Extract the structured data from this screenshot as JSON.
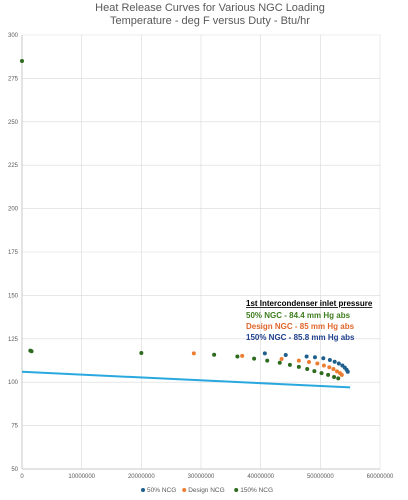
{
  "chart_data": {
    "type": "scatter",
    "title": "Heat Release Curves for Various NGC Loading",
    "subtitle": "Temperature - deg F versus Duty - Btu/hr",
    "xlabel": "",
    "ylabel": "",
    "xlim": [
      0,
      60000000
    ],
    "ylim": [
      50,
      300
    ],
    "grid": true,
    "legend_position": "bottom",
    "x_tick_labels": [
      "0",
      "10000000",
      "20000000",
      "30000000",
      "40000000",
      "50000000",
      "60000000"
    ],
    "x_tick_values": [
      0,
      10000000,
      20000000,
      30000000,
      40000000,
      50000000,
      60000000
    ],
    "y_tick_labels": [
      "50",
      "75",
      "100",
      "125",
      "150",
      "175",
      "200",
      "225",
      "250",
      "275",
      "300"
    ],
    "y_tick_values": [
      50,
      75,
      100,
      125,
      150,
      175,
      200,
      225,
      250,
      275,
      300
    ],
    "series": [
      {
        "name": "50% NCG",
        "color": "#1f5f8b",
        "points": [
          [
            40700000,
            116.6
          ],
          [
            44200000,
            115.7
          ],
          [
            47700000,
            114.8
          ],
          [
            49100000,
            114.4
          ],
          [
            50500000,
            113.8
          ],
          [
            51600000,
            112.8
          ],
          [
            52400000,
            111.8
          ],
          [
            53100000,
            110.8
          ],
          [
            53700000,
            109.6
          ],
          [
            54100000,
            108.4
          ],
          [
            54400000,
            107.2
          ],
          [
            54600000,
            106.0
          ]
        ]
      },
      {
        "name": "Design NCG",
        "color": "#ed7d31",
        "points": [
          [
            28800000,
            116.6
          ],
          [
            36900000,
            115.2
          ],
          [
            43500000,
            113.4
          ],
          [
            46400000,
            112.4
          ],
          [
            48100000,
            111.6
          ],
          [
            49500000,
            110.8
          ],
          [
            50600000,
            109.6
          ],
          [
            51500000,
            108.6
          ],
          [
            52200000,
            107.6
          ],
          [
            52800000,
            106.2
          ],
          [
            53300000,
            105.2
          ],
          [
            53600000,
            104.2
          ]
        ]
      },
      {
        "name": "150% NCG",
        "color": "#2e6b1f",
        "points": [
          [
            0,
            285
          ],
          [
            1400000,
            118.2
          ],
          [
            1600000,
            117.8
          ],
          [
            20000000,
            116.8
          ],
          [
            32200000,
            115.8
          ],
          [
            36100000,
            114.8
          ],
          [
            38900000,
            113.6
          ],
          [
            41100000,
            112.4
          ],
          [
            43200000,
            111.2
          ],
          [
            44900000,
            110.0
          ],
          [
            46400000,
            108.8
          ],
          [
            47800000,
            107.6
          ],
          [
            49000000,
            106.4
          ],
          [
            50200000,
            105.2
          ],
          [
            51300000,
            104.2
          ],
          [
            52300000,
            103.0
          ],
          [
            53000000,
            102.2
          ]
        ]
      }
    ],
    "line_series": {
      "color": "#29a8e0",
      "points": [
        [
          0,
          106
        ],
        [
          55000000,
          97
        ]
      ]
    },
    "annotation": {
      "heading": "1st Intercondenser inlet pressure",
      "lines": [
        {
          "text": "50% NGC - 84.4 mm Hg abs",
          "color": "#3e7d1e"
        },
        {
          "text": "Design NGC - 85 mm Hg abs",
          "color": "#e0662b"
        },
        {
          "text": "150% NGC - 85.8 mm Hg abs",
          "color": "#1f3f8b"
        }
      ]
    }
  }
}
